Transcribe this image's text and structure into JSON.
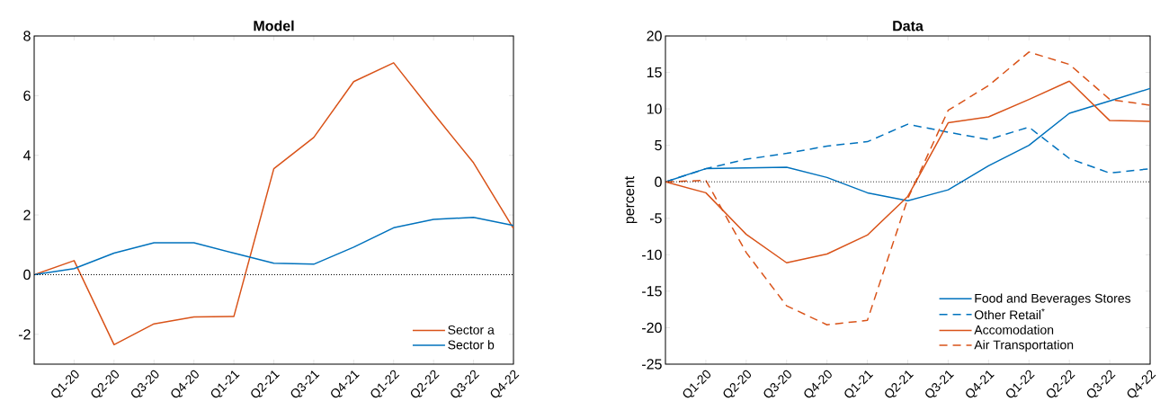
{
  "chart_data": [
    {
      "type": "line",
      "title": "Model",
      "categories": [
        null,
        "Q1-20",
        "Q2-20",
        "Q3-20",
        "Q4-20",
        "Q1-21",
        "Q2-21",
        "Q3-21",
        "Q4-21",
        "Q1-22",
        "Q2-22",
        "Q3-22",
        "Q4-22"
      ],
      "series": [
        {
          "name": "Sector a",
          "color": "#d95319",
          "line_style": "solid",
          "values": [
            0,
            0.47,
            -2.35,
            -1.65,
            -1.42,
            -1.4,
            3.55,
            4.6,
            6.47,
            7.1,
            5.4,
            3.75,
            1.55
          ]
        },
        {
          "name": "Sector b",
          "color": "#0072bd",
          "line_style": "solid",
          "values": [
            0,
            0.2,
            0.72,
            1.07,
            1.07,
            0.72,
            0.38,
            0.35,
            0.92,
            1.57,
            1.85,
            1.92,
            1.65
          ]
        }
      ],
      "ylim": [
        -3,
        8
      ],
      "yticks": [
        -2,
        0,
        2,
        4,
        6,
        8
      ],
      "grid": false,
      "legend": "bottom right",
      "ref_lines": [
        {
          "axis": "y",
          "value": 0,
          "line_style": "dotted",
          "color": "#000000"
        }
      ]
    },
    {
      "type": "line",
      "title": "Data",
      "ylabel": "percent",
      "categories": [
        null,
        "Q1-20",
        "Q2-20",
        "Q3-20",
        "Q4-20",
        "Q1-21",
        "Q2-21",
        "Q3-21",
        "Q4-21",
        "Q1-22",
        "Q2-22",
        "Q3-22",
        "Q4-22"
      ],
      "series": [
        {
          "name": "Food and Beverages Stores",
          "color": "#0072bd",
          "line_style": "solid",
          "values": [
            0,
            1.8,
            1.9,
            2.0,
            0.6,
            -1.5,
            -2.6,
            -1.1,
            2.2,
            5.0,
            9.4,
            11.1,
            12.8
          ]
        },
        {
          "name": "Other Retail$^{*}$",
          "color": "#0072bd",
          "line_style": "dashed",
          "values": [
            0,
            1.8,
            3.1,
            3.9,
            4.9,
            5.5,
            7.9,
            6.8,
            5.8,
            7.5,
            3.2,
            1.2,
            1.8
          ]
        },
        {
          "name": "Accomodation",
          "color": "#d95319",
          "line_style": "solid",
          "values": [
            0,
            -1.5,
            -7.2,
            -11.1,
            -9.9,
            -7.3,
            -2.0,
            8.1,
            8.9,
            11.3,
            13.8,
            8.4,
            8.3
          ]
        },
        {
          "name": "Air Transportation",
          "color": "#d95319",
          "line_style": "dashed",
          "values": [
            0,
            0.2,
            -9.7,
            -17.0,
            -19.6,
            -19.0,
            -2.3,
            9.8,
            13.2,
            17.8,
            16.1,
            11.3,
            10.5
          ]
        }
      ],
      "ylim": [
        -25,
        20
      ],
      "yticks": [
        -25,
        -20,
        -15,
        -10,
        -5,
        0,
        5,
        10,
        15,
        20
      ],
      "grid": false,
      "legend": "bottom right",
      "ref_lines": [
        {
          "axis": "y",
          "value": 0,
          "line_style": "dotted",
          "color": "#000000"
        }
      ]
    }
  ]
}
